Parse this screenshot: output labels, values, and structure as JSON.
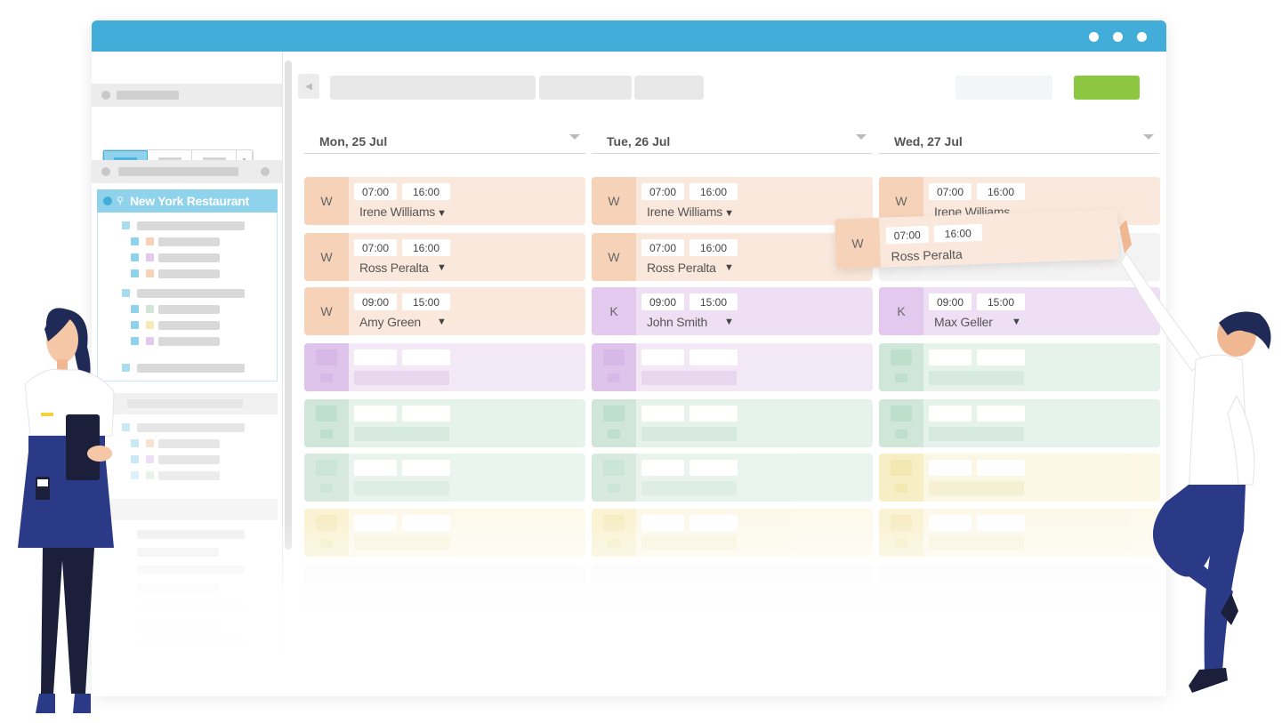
{
  "sidebar": {
    "location_name": "New York Restaurant"
  },
  "colors": {
    "titlebar": "#42add9",
    "accent_green": "#8dc640",
    "role_w": "#f6d3b8",
    "role_k": "#e4c9ee"
  },
  "days": [
    {
      "label": "Mon, 25 Jul"
    },
    {
      "label": "Tue, 26 Jul"
    },
    {
      "label": "Wed, 27 Jul"
    }
  ],
  "shifts": {
    "mon": [
      {
        "role": "W",
        "start": "07:00",
        "end": "16:00",
        "name": "Irene Williams",
        "caret": "▼"
      },
      {
        "role": "W",
        "start": "07:00",
        "end": "16:00",
        "name": "Ross Peralta",
        "caret": "▼"
      },
      {
        "role": "W",
        "start": "09:00",
        "end": "15:00",
        "name": "Amy Green",
        "caret": "▼"
      }
    ],
    "tue": [
      {
        "role": "W",
        "start": "07:00",
        "end": "16:00",
        "name": "Irene Williams",
        "caret": "▼"
      },
      {
        "role": "W",
        "start": "07:00",
        "end": "16:00",
        "name": "Ross Peralta",
        "caret": "▼"
      },
      {
        "role": "K",
        "start": "09:00",
        "end": "15:00",
        "name": "John Smith",
        "caret": "▼"
      }
    ],
    "wed": [
      {
        "role": "W",
        "start": "07:00",
        "end": "16:00",
        "name": "Irene Williams"
      },
      {
        "role": "K",
        "start": "09:00",
        "end": "15:00",
        "name": "Max Geller",
        "caret": "▼"
      }
    ]
  },
  "dragged_shift": {
    "role": "W",
    "start": "07:00",
    "end": "16:00",
    "name": "Ross Peralta"
  }
}
